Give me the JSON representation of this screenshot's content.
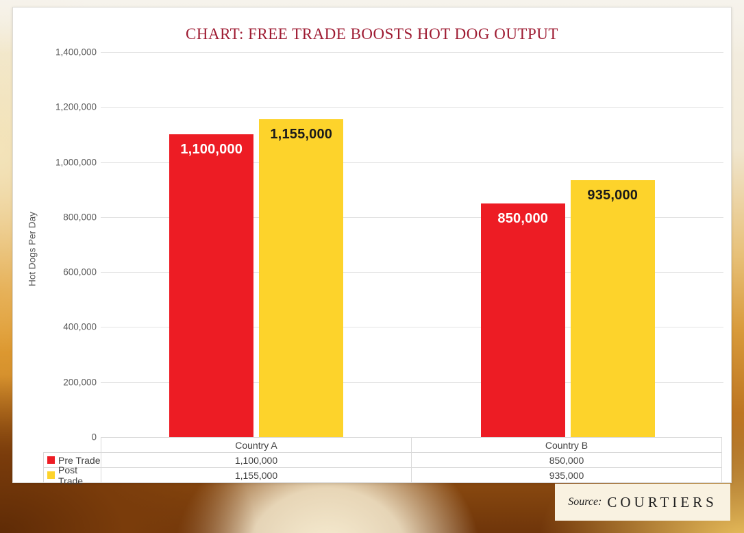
{
  "title": "CHART: FREE TRADE BOOSTS HOT DOG OUTPUT",
  "chart_data": {
    "type": "bar",
    "title": "CHART: FREE TRADE BOOSTS HOT DOG OUTPUT",
    "xlabel": "",
    "ylabel": "Hot Dogs Per Day",
    "ylim": [
      0,
      1400000
    ],
    "grid": true,
    "legend_position": "table-left",
    "yticks": [
      {
        "v": 1400000,
        "label": "1,400,000"
      },
      {
        "v": 1200000,
        "label": "1,200,000"
      },
      {
        "v": 1000000,
        "label": "1,000,000"
      },
      {
        "v": 800000,
        "label": "800,000"
      },
      {
        "v": 600000,
        "label": "600,000"
      },
      {
        "v": 400000,
        "label": "400,000"
      },
      {
        "v": 200000,
        "label": "200,000"
      },
      {
        "v": 0,
        "label": "0"
      }
    ],
    "categories": [
      "Country A",
      "Country B"
    ],
    "series": [
      {
        "name": "Pre Trade",
        "color": "#ED1C24",
        "label_color": "#FFFFFF",
        "values": [
          1100000,
          850000
        ],
        "labels": [
          "1,100,000",
          "850,000"
        ]
      },
      {
        "name": "Post Trade",
        "color": "#FDD32B",
        "label_color": "#1A1A1A",
        "values": [
          1155000,
          935000
        ],
        "labels": [
          "1,155,000",
          "935,000"
        ]
      }
    ]
  },
  "table": {
    "columns": [
      "Country A",
      "Country B"
    ],
    "rows": [
      {
        "name": "Pre Trade",
        "swatch": "#ED1C24",
        "values": [
          "1,100,000",
          "850,000"
        ]
      },
      {
        "name": "Post Trade",
        "swatch": "#FDD32B",
        "values": [
          "1,155,000",
          "935,000"
        ]
      }
    ]
  },
  "source": {
    "prefix": "Source:",
    "name": "COURTIERS"
  },
  "colors": {
    "title": "#9E1B32",
    "pre_trade": "#ED1C24",
    "post_trade": "#FDD32B",
    "axis_text": "#595959",
    "gridline": "#E2E2E2",
    "table_border": "#D9D9D9",
    "source_bg": "#F9F2E1"
  }
}
